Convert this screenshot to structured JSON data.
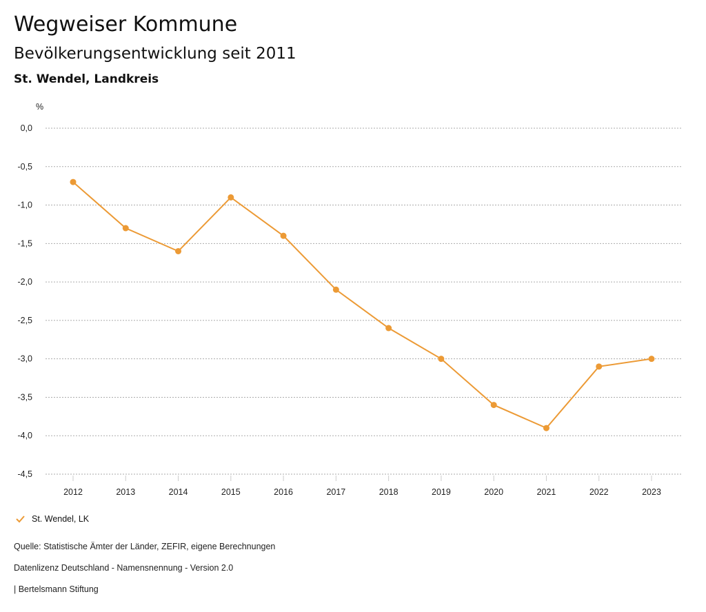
{
  "title": "Wegweiser Kommune",
  "subtitle": "Bevölkerungsentwicklung seit 2011",
  "region": "St. Wendel, Landkreis",
  "footer": {
    "source": "Quelle: Statistische Ämter der Länder, ZEFIR, eigene Berechnungen",
    "license": "Datenlizenz Deutschland - Namensnennung - Version 2.0",
    "credit": "| Bertelsmann Stiftung"
  },
  "chart_data": {
    "type": "line",
    "title": "Bevölkerungsentwicklung seit 2011",
    "ylabel": "%",
    "xlabel": "",
    "ylim": [
      -4.5,
      0
    ],
    "yticks": [
      "0,0",
      "-0,5",
      "-1,0",
      "-1,5",
      "-2,0",
      "-2,5",
      "-3,0",
      "-3,5",
      "-4,0",
      "-4,5"
    ],
    "categories": [
      "2012",
      "2013",
      "2014",
      "2015",
      "2016",
      "2017",
      "2018",
      "2019",
      "2020",
      "2021",
      "2022",
      "2023"
    ],
    "series": [
      {
        "name": "St. Wendel, LK",
        "color": "#ec9a35",
        "values": [
          -0.7,
          -1.3,
          -1.6,
          -0.9,
          -1.4,
          -2.1,
          -2.6,
          -3.0,
          -3.6,
          -3.9,
          -3.1,
          -3.0
        ]
      }
    ],
    "grid": true,
    "legend": "bottom-left"
  }
}
